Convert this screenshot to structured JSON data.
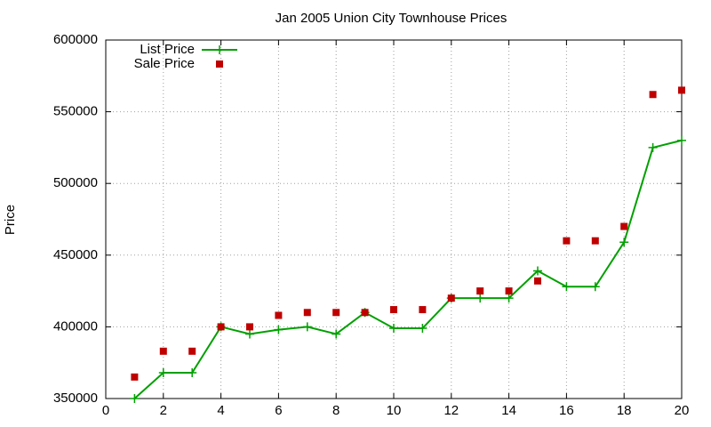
{
  "chart_data": {
    "type": "line",
    "title": "Jan 2005 Union City Townhouse Prices",
    "y_label": "Price",
    "x": [
      1,
      2,
      3,
      4,
      5,
      6,
      7,
      8,
      9,
      10,
      11,
      12,
      13,
      14,
      15,
      16,
      17,
      18,
      19,
      20
    ],
    "series": [
      {
        "name": "List Price",
        "color": "#00a000",
        "style": "linespoints",
        "values": [
          350000,
          368000,
          368000,
          400000,
          395000,
          398000,
          400000,
          395000,
          410000,
          399000,
          399000,
          420000,
          420000,
          420000,
          439000,
          428000,
          428000,
          459000,
          525000,
          530000
        ]
      },
      {
        "name": "Sale Price",
        "color": "#c00000",
        "style": "points",
        "values": [
          365000,
          383000,
          383000,
          400000,
          400000,
          408000,
          410000,
          410000,
          410000,
          412000,
          412000,
          420000,
          425000,
          425000,
          432000,
          460000,
          460000,
          470000,
          562000,
          565000
        ]
      }
    ],
    "xlim": [
      0,
      20
    ],
    "xticks": [
      0,
      2,
      4,
      6,
      8,
      10,
      12,
      14,
      16,
      18,
      20
    ],
    "ylim": [
      350000,
      600000
    ],
    "yticks": [
      350000,
      400000,
      450000,
      500000,
      550000,
      600000
    ],
    "grid": true,
    "legend": "top-left"
  }
}
